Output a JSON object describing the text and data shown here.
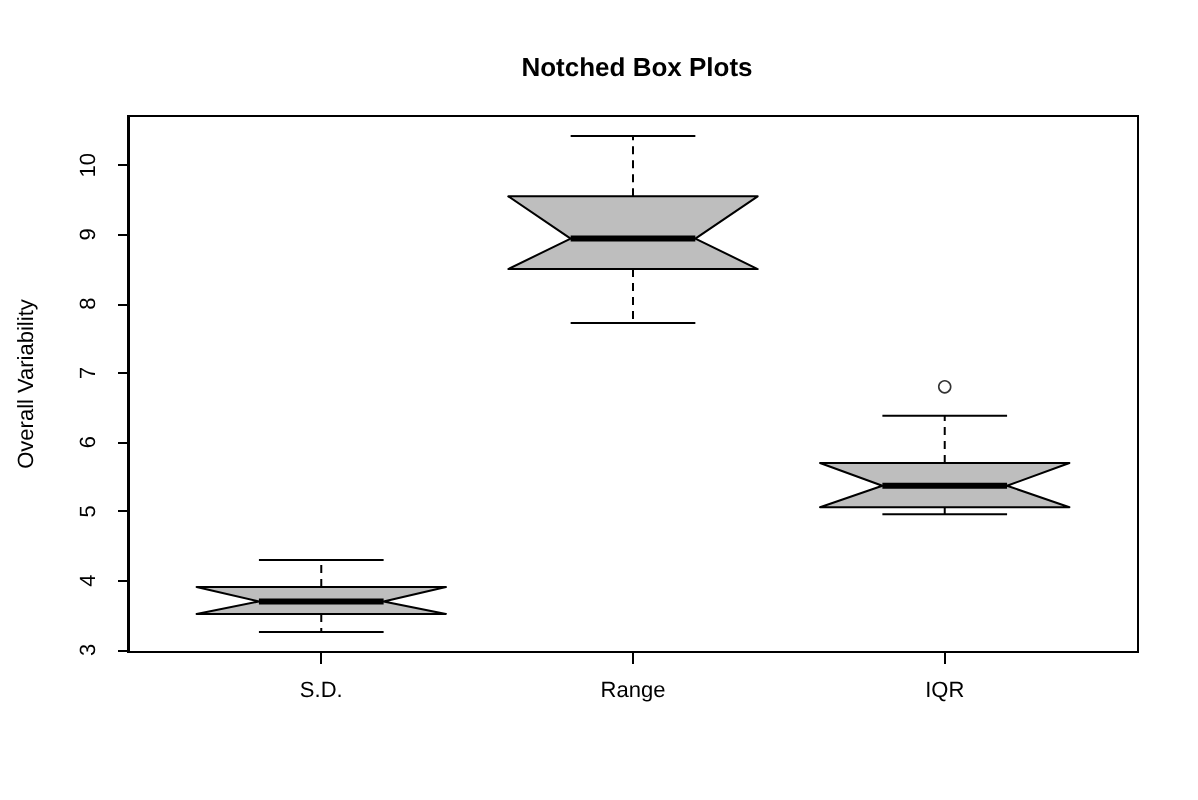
{
  "chart_data": {
    "type": "box",
    "title": "Notched Box Plots",
    "ylabel": "Overall Variability",
    "categories": [
      "S.D.",
      "Range",
      "IQR"
    ],
    "boxes": [
      {
        "low": 3.26,
        "q1": 3.52,
        "median": 3.7,
        "q3": 3.91,
        "high": 4.3
      },
      {
        "low": 7.72,
        "q1": 8.5,
        "median": 8.94,
        "q3": 9.55,
        "high": 10.42
      },
      {
        "low": 4.96,
        "q1": 5.06,
        "median": 5.37,
        "q3": 5.7,
        "high": 6.38,
        "outliers": [
          6.8
        ]
      }
    ],
    "color": "#bebebe",
    "ylim": [
      2.97,
      10.71
    ],
    "yticks": [
      3,
      4,
      5,
      6,
      7,
      8,
      9,
      10
    ]
  }
}
